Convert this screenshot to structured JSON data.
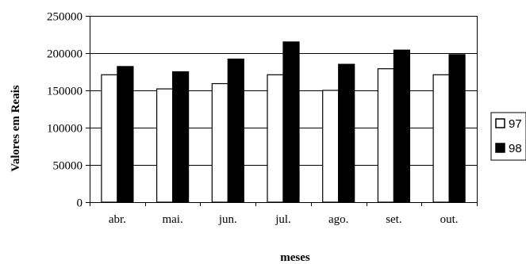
{
  "chart_data": {
    "type": "bar",
    "categories": [
      "abr.",
      "mai.",
      "jun.",
      "jul.",
      "ago.",
      "set.",
      "out."
    ],
    "series": [
      {
        "name": "97",
        "values": [
          171000,
          152000,
          159000,
          171000,
          150000,
          179000,
          171000
        ],
        "color": "#ffffff"
      },
      {
        "name": "98",
        "values": [
          182000,
          175000,
          192000,
          215000,
          185000,
          204000,
          198000
        ],
        "color": "#000000"
      }
    ],
    "title": "",
    "xlabel": "meses",
    "ylabel": "Valores em Reais",
    "ylim": [
      0,
      250000
    ],
    "yticks": [
      "0",
      "50000",
      "100000",
      "150000",
      "200000",
      "250000"
    ],
    "grid": true,
    "legend_position": "right"
  }
}
